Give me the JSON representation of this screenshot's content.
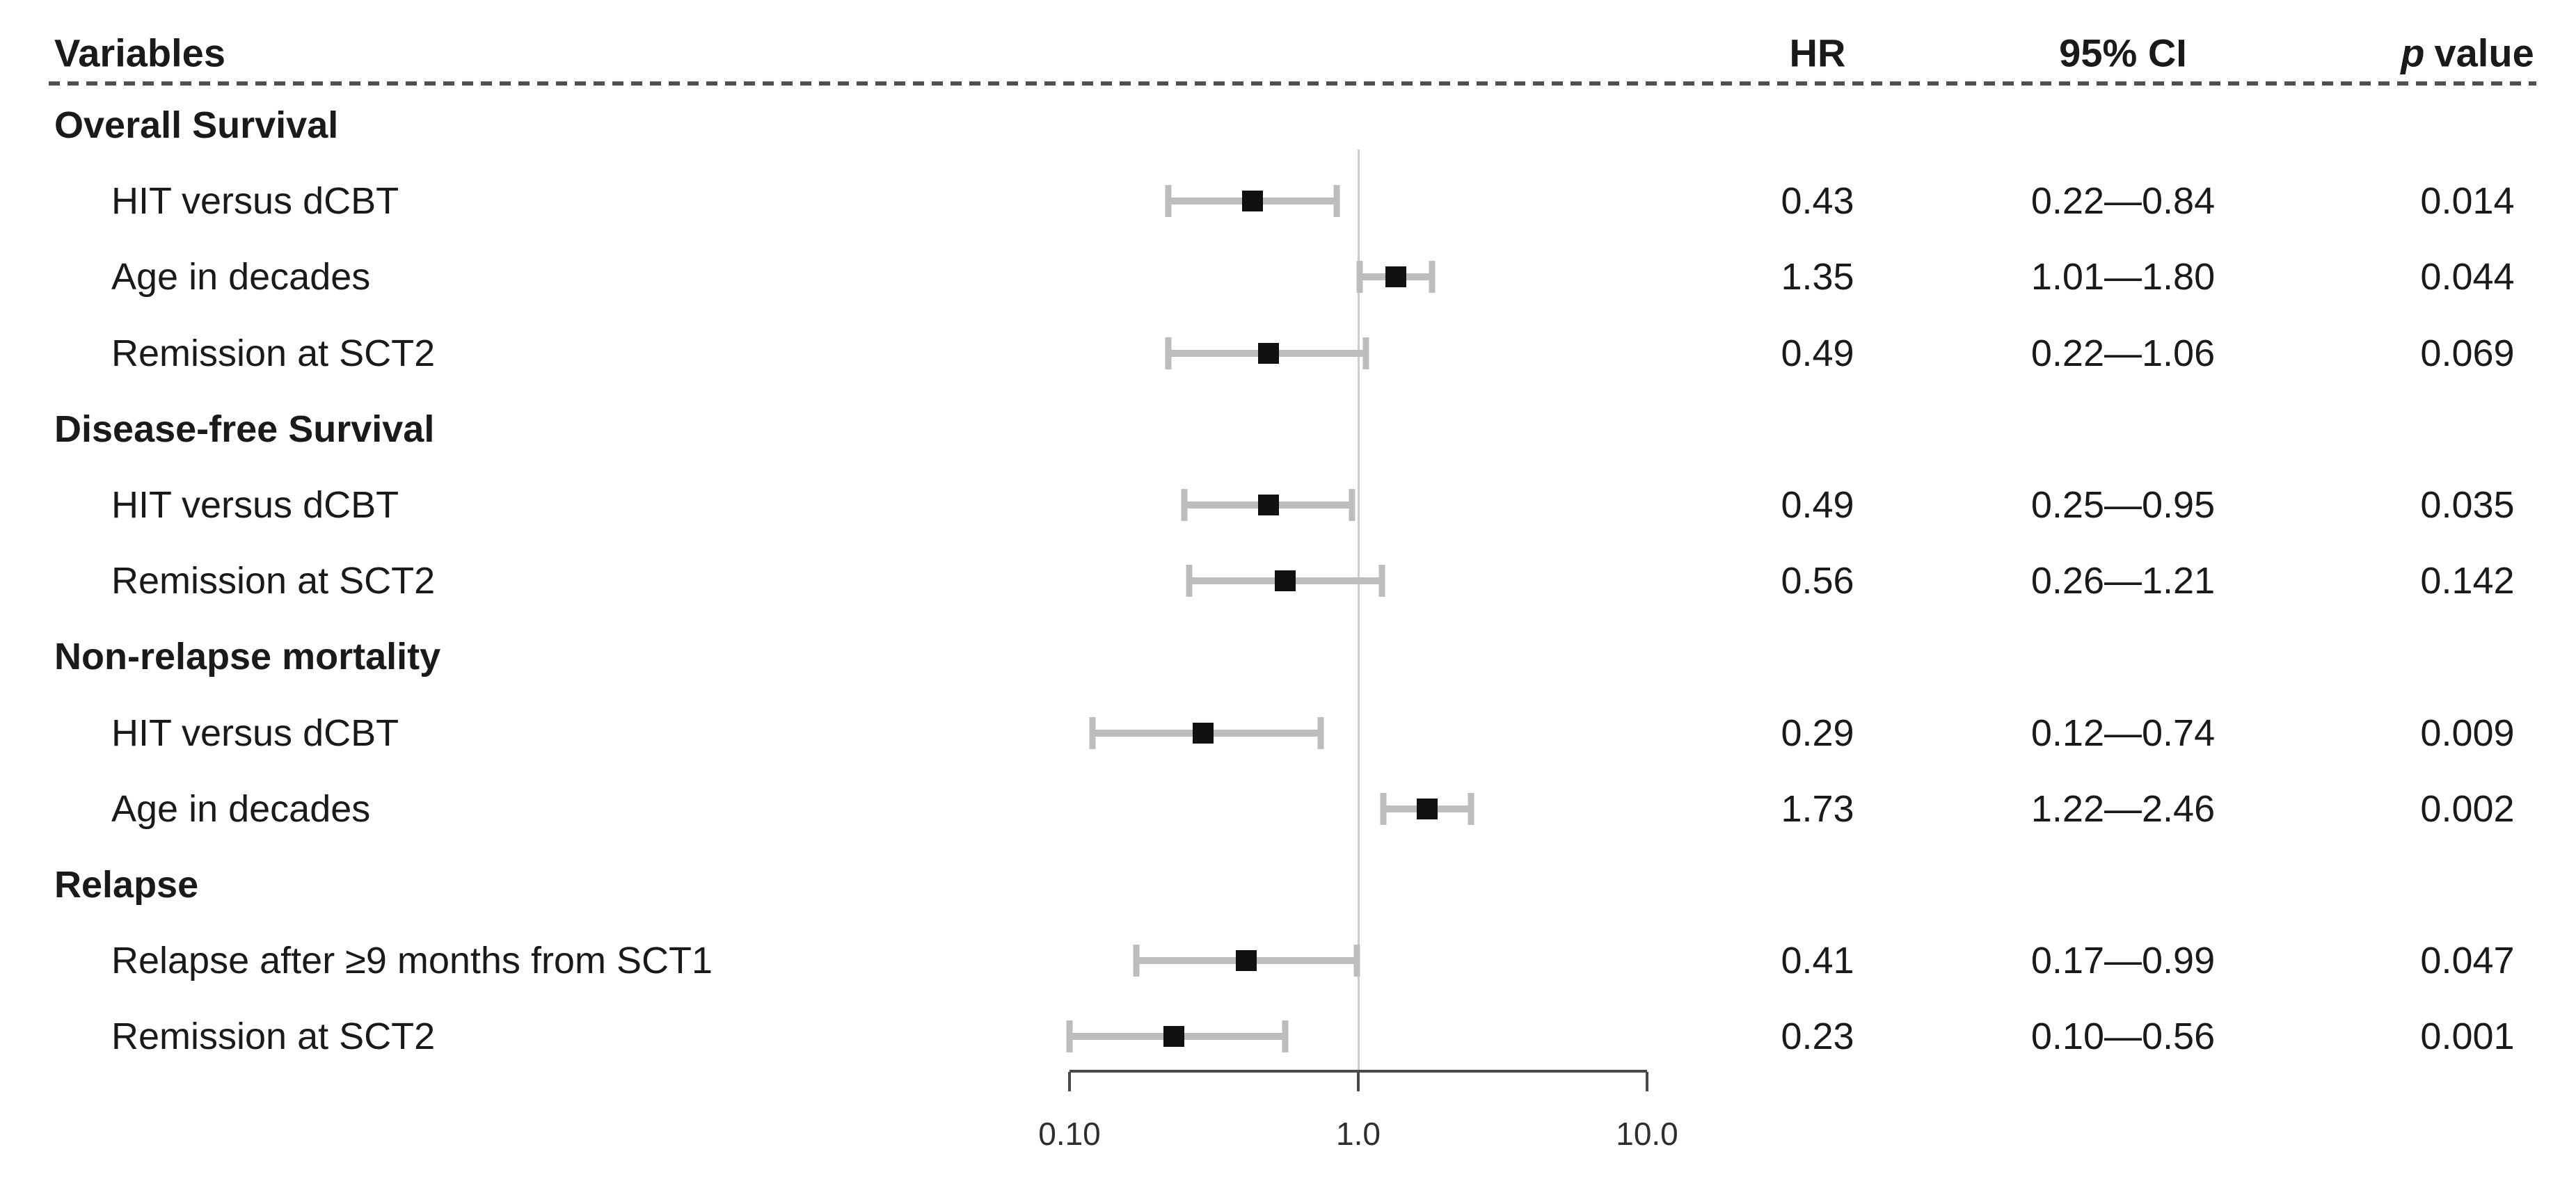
{
  "header": {
    "variables": "Variables",
    "hr": "HR",
    "ci": "95% CI",
    "p_italic": "p",
    "p_rest": "value"
  },
  "colors": {
    "text": "#1a1a1a",
    "marker": "#111111",
    "ci_bar": "#bdbdbd",
    "reference_line": "#cccccc",
    "axis": "#4a4a4a"
  },
  "chart_data": {
    "type": "scatter",
    "subtype": "forest-plot",
    "title": "",
    "columns": [
      "Variables",
      "HR",
      "95% CI",
      "p value"
    ],
    "x_axis": {
      "scale": "log10",
      "range": [
        0.1,
        10.0
      ],
      "ticks": [
        0.1,
        1.0,
        10.0
      ],
      "tick_labels": [
        "0.10",
        "1.0",
        "10.0"
      ],
      "reference_line": 1.0,
      "grid": false
    },
    "legend": null,
    "groups": [
      {
        "label": "Overall Survival",
        "rows": [
          {
            "label": "HIT versus dCBT",
            "hr": 0.43,
            "ci": [
              0.22,
              0.84
            ],
            "p": 0.014,
            "hr_text": "0.43",
            "ci_text": "0.22—0.84",
            "p_text": "0.014"
          },
          {
            "label": "Age in decades",
            "hr": 1.35,
            "ci": [
              1.01,
              1.8
            ],
            "p": 0.044,
            "hr_text": "1.35",
            "ci_text": "1.01—1.80",
            "p_text": "0.044"
          },
          {
            "label": "Remission at SCT2",
            "hr": 0.49,
            "ci": [
              0.22,
              1.06
            ],
            "p": 0.069,
            "hr_text": "0.49",
            "ci_text": "0.22—1.06",
            "p_text": "0.069"
          }
        ]
      },
      {
        "label": "Disease-free Survival",
        "rows": [
          {
            "label": "HIT versus dCBT",
            "hr": 0.49,
            "ci": [
              0.25,
              0.95
            ],
            "p": 0.035,
            "hr_text": "0.49",
            "ci_text": "0.25—0.95",
            "p_text": "0.035"
          },
          {
            "label": "Remission at SCT2",
            "hr": 0.56,
            "ci": [
              0.26,
              1.21
            ],
            "p": 0.142,
            "hr_text": "0.56",
            "ci_text": "0.26—1.21",
            "p_text": "0.142"
          }
        ]
      },
      {
        "label": "Non-relapse mortality",
        "rows": [
          {
            "label": "HIT versus dCBT",
            "hr": 0.29,
            "ci": [
              0.12,
              0.74
            ],
            "p": 0.009,
            "hr_text": "0.29",
            "ci_text": "0.12—0.74",
            "p_text": "0.009"
          },
          {
            "label": "Age in decades",
            "hr": 1.73,
            "ci": [
              1.22,
              2.46
            ],
            "p": 0.002,
            "hr_text": "1.73",
            "ci_text": "1.22—2.46",
            "p_text": "0.002"
          }
        ]
      },
      {
        "label": "Relapse",
        "rows": [
          {
            "label": "Relapse after ≥9 months from SCT1",
            "hr": 0.41,
            "ci": [
              0.17,
              0.99
            ],
            "p": 0.047,
            "hr_text": "0.41",
            "ci_text": "0.17—0.99",
            "p_text": "0.047"
          },
          {
            "label": "Remission at SCT2",
            "hr": 0.23,
            "ci": [
              0.1,
              0.56
            ],
            "p": 0.001,
            "hr_text": "0.23",
            "ci_text": "0.10—0.56",
            "p_text": "0.001"
          }
        ]
      }
    ]
  }
}
